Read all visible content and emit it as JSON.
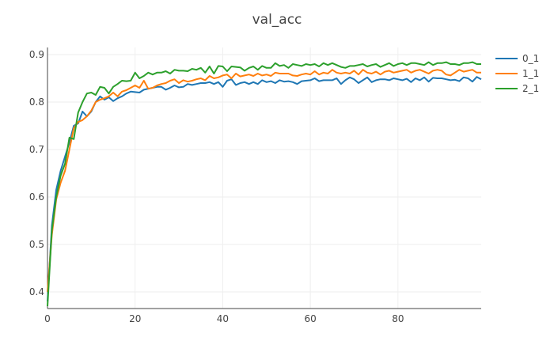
{
  "chart_data": {
    "type": "line",
    "title": "val_acc",
    "xlabel": "",
    "ylabel": "",
    "xlim": [
      0,
      99
    ],
    "ylim": [
      0.365,
      0.915
    ],
    "grid": true,
    "legend": "top-right",
    "x_ticks": [
      0,
      20,
      40,
      60,
      80
    ],
    "y_ticks": [
      0.4,
      0.5,
      0.6,
      0.7,
      0.8,
      0.9
    ],
    "series": [
      {
        "name": "0_1",
        "color": "#1f77b4",
        "x": [
          0,
          1,
          2,
          3,
          4,
          5,
          6,
          7,
          8,
          9,
          10,
          11,
          12,
          13,
          14,
          15,
          16,
          17,
          18,
          19,
          20,
          21,
          22,
          23,
          24,
          25,
          26,
          27,
          28,
          29,
          30,
          31,
          32,
          33,
          34,
          35,
          36,
          37,
          38,
          39,
          40,
          41,
          42,
          43,
          44,
          45,
          46,
          47,
          48,
          49,
          50,
          51,
          52,
          53,
          54,
          55,
          56,
          57,
          58,
          59,
          60,
          61,
          62,
          63,
          64,
          65,
          66,
          67,
          68,
          69,
          70,
          71,
          72,
          73,
          74,
          75,
          76,
          77,
          78,
          79,
          80,
          81,
          82,
          83,
          84,
          85,
          86,
          87,
          88,
          89,
          90,
          91,
          92,
          93,
          94,
          95,
          96,
          97,
          98,
          99
        ],
        "y": [
          0.38,
          0.54,
          0.615,
          0.655,
          0.685,
          0.715,
          0.75,
          0.755,
          0.78,
          0.77,
          0.78,
          0.8,
          0.812,
          0.805,
          0.81,
          0.802,
          0.808,
          0.812,
          0.818,
          0.822,
          0.821,
          0.82,
          0.826,
          0.828,
          0.83,
          0.832,
          0.832,
          0.826,
          0.83,
          0.835,
          0.831,
          0.832,
          0.838,
          0.836,
          0.838,
          0.84,
          0.84,
          0.842,
          0.838,
          0.842,
          0.832,
          0.845,
          0.848,
          0.836,
          0.84,
          0.842,
          0.838,
          0.842,
          0.838,
          0.846,
          0.842,
          0.844,
          0.84,
          0.846,
          0.843,
          0.844,
          0.842,
          0.838,
          0.844,
          0.845,
          0.846,
          0.85,
          0.844,
          0.846,
          0.846,
          0.846,
          0.85,
          0.838,
          0.846,
          0.852,
          0.848,
          0.84,
          0.846,
          0.852,
          0.842,
          0.846,
          0.848,
          0.848,
          0.846,
          0.85,
          0.848,
          0.846,
          0.849,
          0.842,
          0.85,
          0.846,
          0.852,
          0.843,
          0.851,
          0.85,
          0.85,
          0.848,
          0.846,
          0.847,
          0.844,
          0.852,
          0.85,
          0.843,
          0.853,
          0.848
        ]
      },
      {
        "name": "1_1",
        "color": "#ff7f0e",
        "x": [
          0,
          1,
          2,
          3,
          4,
          5,
          6,
          7,
          8,
          9,
          10,
          11,
          12,
          13,
          14,
          15,
          16,
          17,
          18,
          19,
          20,
          21,
          22,
          23,
          24,
          25,
          26,
          27,
          28,
          29,
          30,
          31,
          32,
          33,
          34,
          35,
          36,
          37,
          38,
          39,
          40,
          41,
          42,
          43,
          44,
          45,
          46,
          47,
          48,
          49,
          50,
          51,
          52,
          53,
          54,
          55,
          56,
          57,
          58,
          59,
          60,
          61,
          62,
          63,
          64,
          65,
          66,
          67,
          68,
          69,
          70,
          71,
          72,
          73,
          74,
          75,
          76,
          77,
          78,
          79,
          80,
          81,
          82,
          83,
          84,
          85,
          86,
          87,
          88,
          89,
          90,
          91,
          92,
          93,
          94,
          95,
          96,
          97,
          98,
          99
        ],
        "y": [
          0.4,
          0.52,
          0.595,
          0.63,
          0.655,
          0.7,
          0.745,
          0.758,
          0.762,
          0.77,
          0.782,
          0.8,
          0.805,
          0.808,
          0.812,
          0.82,
          0.812,
          0.822,
          0.825,
          0.83,
          0.835,
          0.83,
          0.845,
          0.828,
          0.83,
          0.835,
          0.838,
          0.84,
          0.845,
          0.848,
          0.84,
          0.846,
          0.843,
          0.845,
          0.848,
          0.85,
          0.846,
          0.855,
          0.85,
          0.852,
          0.856,
          0.858,
          0.85,
          0.86,
          0.854,
          0.856,
          0.858,
          0.855,
          0.86,
          0.856,
          0.858,
          0.855,
          0.862,
          0.86,
          0.86,
          0.86,
          0.856,
          0.855,
          0.858,
          0.86,
          0.858,
          0.865,
          0.858,
          0.862,
          0.86,
          0.868,
          0.862,
          0.86,
          0.862,
          0.86,
          0.866,
          0.858,
          0.868,
          0.862,
          0.86,
          0.864,
          0.858,
          0.864,
          0.866,
          0.862,
          0.864,
          0.866,
          0.868,
          0.862,
          0.866,
          0.868,
          0.864,
          0.86,
          0.866,
          0.868,
          0.866,
          0.858,
          0.856,
          0.862,
          0.868,
          0.864,
          0.866,
          0.868,
          0.862,
          0.862
        ]
      },
      {
        "name": "2_1",
        "color": "#2ca02c",
        "x": [
          0,
          1,
          2,
          3,
          4,
          5,
          6,
          7,
          8,
          9,
          10,
          11,
          12,
          13,
          14,
          15,
          16,
          17,
          18,
          19,
          20,
          21,
          22,
          23,
          24,
          25,
          26,
          27,
          28,
          29,
          30,
          31,
          32,
          33,
          34,
          35,
          36,
          37,
          38,
          39,
          40,
          41,
          42,
          43,
          44,
          45,
          46,
          47,
          48,
          49,
          50,
          51,
          52,
          53,
          54,
          55,
          56,
          57,
          58,
          59,
          60,
          61,
          62,
          63,
          64,
          65,
          66,
          67,
          68,
          69,
          70,
          71,
          72,
          73,
          74,
          75,
          76,
          77,
          78,
          79,
          80,
          81,
          82,
          83,
          84,
          85,
          86,
          87,
          88,
          89,
          90,
          91,
          92,
          93,
          94,
          95,
          96,
          97,
          98,
          99
        ],
        "y": [
          0.37,
          0.53,
          0.6,
          0.645,
          0.67,
          0.725,
          0.722,
          0.778,
          0.8,
          0.818,
          0.82,
          0.815,
          0.832,
          0.83,
          0.818,
          0.832,
          0.838,
          0.845,
          0.844,
          0.845,
          0.862,
          0.85,
          0.855,
          0.862,
          0.858,
          0.862,
          0.862,
          0.865,
          0.86,
          0.868,
          0.866,
          0.866,
          0.865,
          0.87,
          0.868,
          0.872,
          0.862,
          0.875,
          0.86,
          0.876,
          0.875,
          0.865,
          0.875,
          0.874,
          0.873,
          0.866,
          0.872,
          0.875,
          0.868,
          0.876,
          0.872,
          0.872,
          0.882,
          0.876,
          0.878,
          0.872,
          0.88,
          0.878,
          0.876,
          0.88,
          0.878,
          0.88,
          0.875,
          0.882,
          0.878,
          0.882,
          0.878,
          0.874,
          0.872,
          0.876,
          0.876,
          0.878,
          0.88,
          0.875,
          0.878,
          0.88,
          0.874,
          0.878,
          0.882,
          0.876,
          0.88,
          0.882,
          0.878,
          0.882,
          0.882,
          0.88,
          0.878,
          0.884,
          0.878,
          0.882,
          0.882,
          0.884,
          0.88,
          0.88,
          0.878,
          0.882,
          0.882,
          0.884,
          0.88,
          0.88
        ]
      }
    ]
  }
}
